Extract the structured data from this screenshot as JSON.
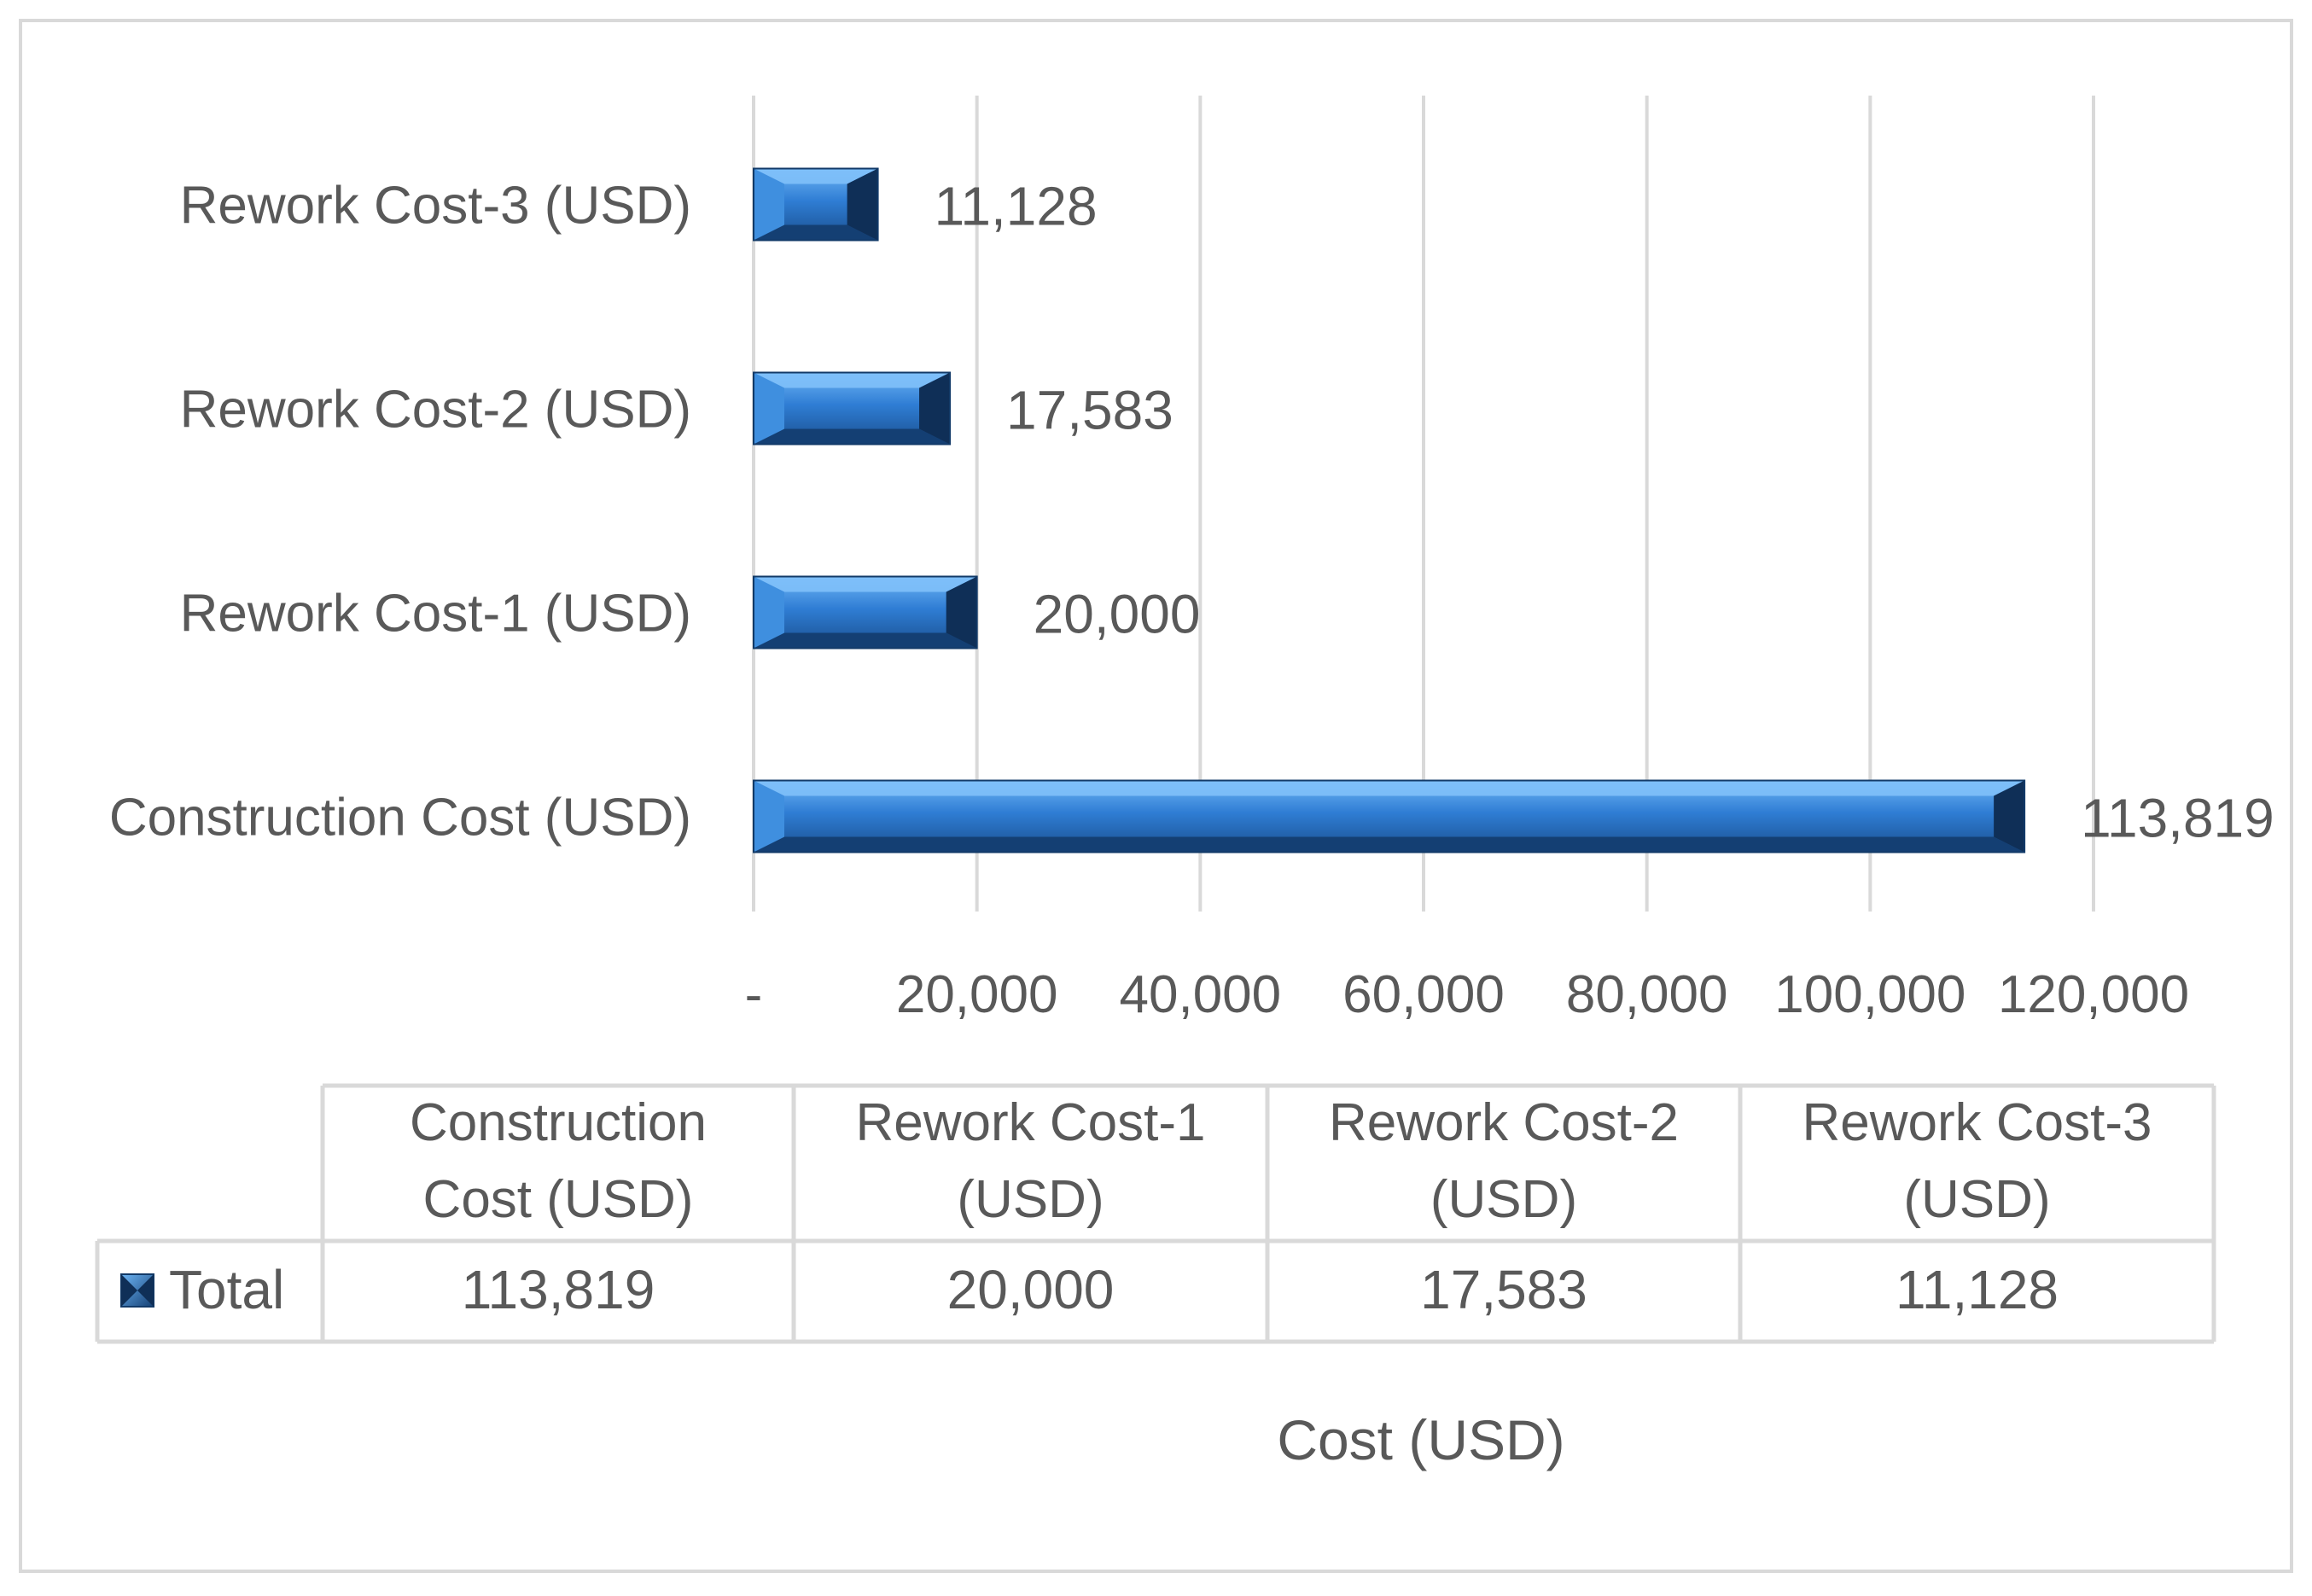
{
  "chart_data": {
    "type": "bar",
    "orientation": "horizontal",
    "categories": [
      "Construction Cost (USD)",
      "Rework Cost-1 (USD)",
      "Rework Cost-2 (USD)",
      "Rework Cost-3 (USD)"
    ],
    "series": [
      {
        "name": "Total",
        "values": [
          113819,
          20000,
          17583,
          11128
        ]
      }
    ],
    "data_labels": [
      "113,819",
      "20,000",
      "17,583",
      "11,128"
    ],
    "x_ticks": [
      "-",
      "20,000",
      "40,000",
      "60,000",
      "80,000",
      "100,000",
      "120,000"
    ],
    "x_tick_values": [
      0,
      20000,
      40000,
      60000,
      80000,
      100000,
      120000
    ],
    "xlim": [
      0,
      120000
    ],
    "xlabel": "Cost (USD)",
    "grid": true,
    "data_table": {
      "headers": [
        [
          "Construction",
          "Cost (USD)"
        ],
        [
          "Rework Cost-1",
          "(USD)"
        ],
        [
          "Rework Cost-2",
          "(USD)"
        ],
        [
          "Rework Cost-3",
          "(USD)"
        ]
      ],
      "row_label": "Total",
      "values": [
        "113,819",
        "20,000",
        "17,583",
        "11,128"
      ]
    },
    "colors": {
      "bar": "#2e75c8",
      "bar_light": "#5aa7f0",
      "bar_dark": "#143f73",
      "text": "#595959",
      "grid": "#d9d9d9",
      "border": "#d9d9d9"
    }
  }
}
